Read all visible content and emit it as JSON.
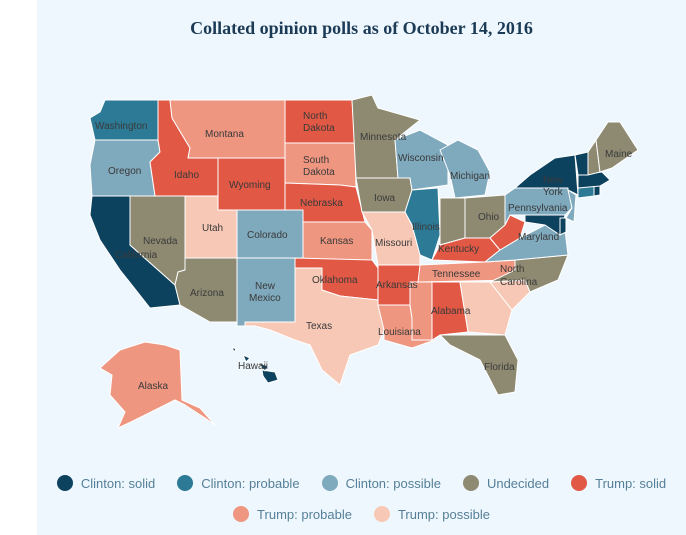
{
  "title": "Collated opinion polls as of October 14, 2016",
  "colors": {
    "clinton_solid": "#0d425f",
    "clinton_probable": "#2d7a96",
    "clinton_possible": "#7fa9bd",
    "undecided": "#8e8a72",
    "trump_solid": "#e15844",
    "trump_probable": "#ee9680",
    "trump_possible": "#f7c8b6"
  },
  "legend": [
    {
      "key": "clinton_solid",
      "label": "Clinton: solid"
    },
    {
      "key": "clinton_probable",
      "label": "Clinton: probable"
    },
    {
      "key": "clinton_possible",
      "label": "Clinton: possible"
    },
    {
      "key": "undecided",
      "label": "Undecided"
    },
    {
      "key": "trump_solid",
      "label": "Trump: solid"
    },
    {
      "key": "trump_probable",
      "label": "Trump: probable"
    },
    {
      "key": "trump_possible",
      "label": "Trump: possible"
    }
  ],
  "states": [
    {
      "name": "Washington",
      "rating": "clinton_probable"
    },
    {
      "name": "Oregon",
      "rating": "clinton_possible"
    },
    {
      "name": "California",
      "rating": "clinton_solid"
    },
    {
      "name": "Nevada",
      "rating": "undecided"
    },
    {
      "name": "Idaho",
      "rating": "trump_solid"
    },
    {
      "name": "Montana",
      "rating": "trump_probable"
    },
    {
      "name": "Wyoming",
      "rating": "trump_solid"
    },
    {
      "name": "Utah",
      "rating": "trump_possible"
    },
    {
      "name": "Arizona",
      "rating": "undecided"
    },
    {
      "name": "Colorado",
      "rating": "clinton_possible"
    },
    {
      "name": "New Mexico",
      "rating": "clinton_possible"
    },
    {
      "name": "North Dakota",
      "rating": "trump_solid"
    },
    {
      "name": "South Dakota",
      "rating": "trump_probable"
    },
    {
      "name": "Nebraska",
      "rating": "trump_solid"
    },
    {
      "name": "Kansas",
      "rating": "trump_probable"
    },
    {
      "name": "Oklahoma",
      "rating": "trump_solid"
    },
    {
      "name": "Texas",
      "rating": "trump_possible"
    },
    {
      "name": "Minnesota",
      "rating": "undecided"
    },
    {
      "name": "Iowa",
      "rating": "undecided"
    },
    {
      "name": "Missouri",
      "rating": "trump_possible"
    },
    {
      "name": "Arkansas",
      "rating": "trump_solid"
    },
    {
      "name": "Louisiana",
      "rating": "trump_probable"
    },
    {
      "name": "Wisconsin",
      "rating": "clinton_possible"
    },
    {
      "name": "Illinois",
      "rating": "clinton_probable"
    },
    {
      "name": "Michigan",
      "rating": "clinton_possible"
    },
    {
      "name": "Indiana",
      "rating": "undecided"
    },
    {
      "name": "Ohio",
      "rating": "undecided"
    },
    {
      "name": "Kentucky",
      "rating": "trump_solid"
    },
    {
      "name": "Tennessee",
      "rating": "trump_probable"
    },
    {
      "name": "Mississippi",
      "rating": "trump_probable"
    },
    {
      "name": "Alabama",
      "rating": "trump_solid"
    },
    {
      "name": "Georgia",
      "rating": "trump_possible"
    },
    {
      "name": "Florida",
      "rating": "undecided"
    },
    {
      "name": "South Carolina",
      "rating": "trump_possible"
    },
    {
      "name": "North Carolina",
      "rating": "undecided"
    },
    {
      "name": "Virginia",
      "rating": "clinton_possible"
    },
    {
      "name": "West Virginia",
      "rating": "trump_solid"
    },
    {
      "name": "Pennsylvania",
      "rating": "clinton_possible"
    },
    {
      "name": "Maryland",
      "rating": "clinton_solid"
    },
    {
      "name": "Delaware",
      "rating": "clinton_solid"
    },
    {
      "name": "New Jersey",
      "rating": "clinton_possible"
    },
    {
      "name": "New York",
      "rating": "clinton_solid"
    },
    {
      "name": "Connecticut",
      "rating": "clinton_probable"
    },
    {
      "name": "Rhode Island",
      "rating": "clinton_solid"
    },
    {
      "name": "Massachusetts",
      "rating": "clinton_solid"
    },
    {
      "name": "Vermont",
      "rating": "clinton_solid"
    },
    {
      "name": "New Hampshire",
      "rating": "undecided"
    },
    {
      "name": "Maine",
      "rating": "undecided"
    },
    {
      "name": "Alaska",
      "rating": "trump_probable"
    },
    {
      "name": "Hawaii",
      "rating": "clinton_solid"
    }
  ],
  "labels": {
    "Washington": "Washington",
    "Oregon": "Oregon",
    "California": "California",
    "Nevada": "Nevada",
    "Idaho": "Idaho",
    "Montana": "Montana",
    "Wyoming": "Wyoming",
    "Utah": "Utah",
    "Arizona": "Arizona",
    "Colorado": "Colorado",
    "New_Mexico_1": "New",
    "New_Mexico_2": "Mexico",
    "North_Dakota_1": "North",
    "North_Dakota_2": "Dakota",
    "South_Dakota_1": "South",
    "South_Dakota_2": "Dakota",
    "Nebraska": "Nebraska",
    "Kansas": "Kansas",
    "Oklahoma": "Oklahoma",
    "Texas": "Texas",
    "Minnesota": "Minnesota",
    "Iowa": "Iowa",
    "Missouri": "Missouri",
    "Arkansas": "Arkansas",
    "Louisiana": "Louisiana",
    "Wisconsin": "Wisconsin",
    "Illinois": "Illinois",
    "Michigan": "Michigan",
    "Ohio": "Ohio",
    "Kentucky": "Kentucky",
    "Tennessee": "Tennessee",
    "Alabama": "Alabama",
    "Florida": "Florida",
    "North_Carolina_1": "North",
    "North_Carolina_2": "Carolina",
    "Pennsylvania": "Pennsylvania",
    "Maryland": "Maryland",
    "New_York_1": "New",
    "New_York_2": "York",
    "Maine": "Maine",
    "Alaska": "Alaska",
    "Hawaii": "Hawaii"
  }
}
